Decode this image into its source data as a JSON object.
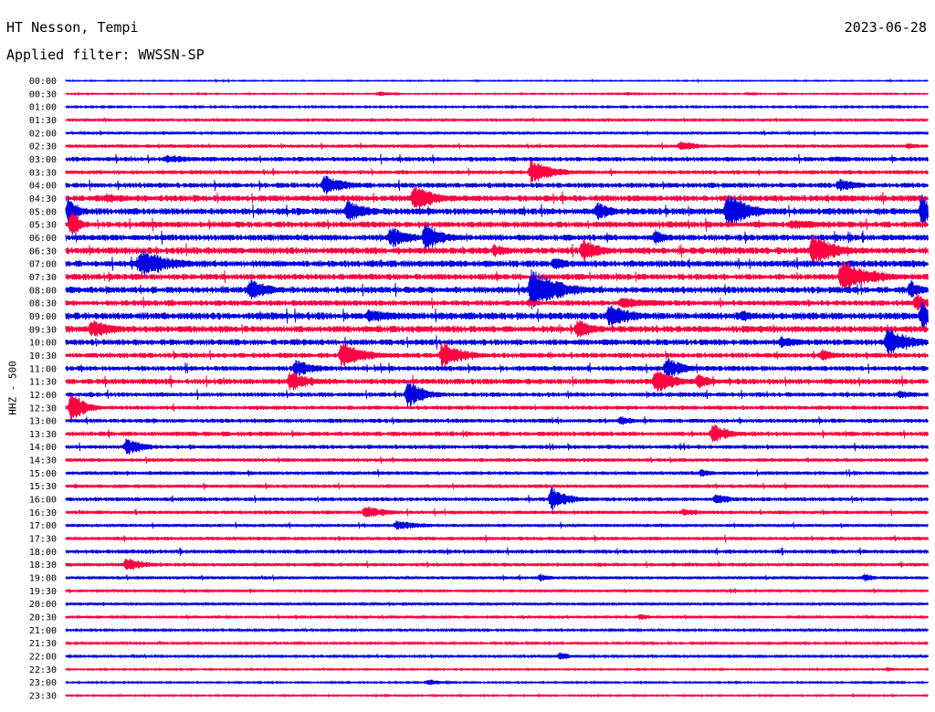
{
  "header": {
    "station": "HT Nesson, Tempi",
    "date": "2023-06-28",
    "filter_label": "Applied filter: WWSSN-SP"
  },
  "colors": {
    "trace_even": "#0000e0",
    "trace_odd": "#ff0040",
    "text": "#000000",
    "background": "#ffffff"
  },
  "chart_data": {
    "type": "line",
    "kind": "helicorder",
    "ylabel": "HHZ - 500",
    "row_labels": [
      "00:00",
      "00:30",
      "01:00",
      "01:30",
      "02:00",
      "02:30",
      "03:00",
      "03:30",
      "04:00",
      "04:30",
      "05:00",
      "05:30",
      "06:00",
      "06:30",
      "07:00",
      "07:30",
      "08:00",
      "08:30",
      "09:00",
      "09:30",
      "10:00",
      "10:30",
      "11:00",
      "11:30",
      "12:00",
      "12:30",
      "13:00",
      "13:30",
      "14:00",
      "14:30",
      "15:00",
      "15:30",
      "16:00",
      "16:30",
      "17:00",
      "17:30",
      "18:00",
      "18:30",
      "19:00",
      "19:30",
      "20:00",
      "20:30",
      "21:00",
      "21:30",
      "22:00",
      "22:30",
      "23:00",
      "23:30"
    ],
    "minutes_per_row": 30,
    "row_noise": [
      0.4,
      0.5,
      0.7,
      0.9,
      1.0,
      1.3,
      1.8,
      1.6,
      2.0,
      2.4,
      2.6,
      2.4,
      2.4,
      2.6,
      2.6,
      2.4,
      2.6,
      2.2,
      2.8,
      2.6,
      2.4,
      2.0,
      2.0,
      2.2,
      1.8,
      1.6,
      1.6,
      1.8,
      1.6,
      1.4,
      1.4,
      1.4,
      1.6,
      1.4,
      1.2,
      1.4,
      1.6,
      1.4,
      1.2,
      1.0,
      1.0,
      0.9,
      0.8,
      0.8,
      0.8,
      0.6,
      0.6,
      0.6
    ],
    "events": [
      {
        "row": 1,
        "minute": 10.9,
        "amplitude": 3,
        "duration": 1.0
      },
      {
        "row": 1,
        "minute": 19.5,
        "amplitude": 2,
        "duration": 1.0
      },
      {
        "row": 1,
        "minute": 23.7,
        "amplitude": 2,
        "duration": 0.8
      },
      {
        "row": 5,
        "minute": 21.4,
        "amplitude": 7,
        "duration": 1.2
      },
      {
        "row": 5,
        "minute": 29.3,
        "amplitude": 4,
        "duration": 1.0
      },
      {
        "row": 6,
        "minute": 3.5,
        "amplitude": 5,
        "duration": 2.5
      },
      {
        "row": 6,
        "minute": 26.7,
        "amplitude": 4,
        "duration": 1.2
      },
      {
        "row": 7,
        "minute": 16.2,
        "amplitude": 15,
        "duration": 1.5
      },
      {
        "row": 8,
        "minute": 9.0,
        "amplitude": 12,
        "duration": 1.5
      },
      {
        "row": 8,
        "minute": 26.9,
        "amplitude": 8,
        "duration": 1.5
      },
      {
        "row": 9,
        "minute": 1.4,
        "amplitude": 6,
        "duration": 2.0
      },
      {
        "row": 9,
        "minute": 12.1,
        "amplitude": 16,
        "duration": 1.5
      },
      {
        "row": 10,
        "minute": 0.1,
        "amplitude": 20,
        "duration": 0.6
      },
      {
        "row": 10,
        "minute": 9.8,
        "amplitude": 13,
        "duration": 1.5
      },
      {
        "row": 10,
        "minute": 18.5,
        "amplitude": 11,
        "duration": 1.2
      },
      {
        "row": 10,
        "minute": 23.0,
        "amplitude": 22,
        "duration": 1.5
      },
      {
        "row": 10,
        "minute": 29.8,
        "amplitude": 20,
        "duration": 0.6
      },
      {
        "row": 11,
        "minute": 0.2,
        "amplitude": 20,
        "duration": 0.5
      },
      {
        "row": 11,
        "minute": 25.2,
        "amplitude": 6,
        "duration": 3.0
      },
      {
        "row": 12,
        "minute": 11.3,
        "amplitude": 13,
        "duration": 1.5
      },
      {
        "row": 12,
        "minute": 12.5,
        "amplitude": 18,
        "duration": 1.2
      },
      {
        "row": 12,
        "minute": 20.5,
        "amplitude": 10,
        "duration": 0.8
      },
      {
        "row": 13,
        "minute": 14.9,
        "amplitude": 8,
        "duration": 1.0
      },
      {
        "row": 13,
        "minute": 18.0,
        "amplitude": 15,
        "duration": 1.2
      },
      {
        "row": 13,
        "minute": 26.0,
        "amplitude": 20,
        "duration": 1.5
      },
      {
        "row": 14,
        "minute": 2.6,
        "amplitude": 17,
        "duration": 2.0
      },
      {
        "row": 14,
        "minute": 17.0,
        "amplitude": 9,
        "duration": 1.0
      },
      {
        "row": 15,
        "minute": 27.0,
        "amplitude": 20,
        "duration": 2.0
      },
      {
        "row": 16,
        "minute": 6.4,
        "amplitude": 13,
        "duration": 1.5
      },
      {
        "row": 16,
        "minute": 16.2,
        "amplitude": 24,
        "duration": 2.0
      },
      {
        "row": 16,
        "minute": 29.4,
        "amplitude": 12,
        "duration": 0.8
      },
      {
        "row": 17,
        "minute": 19.3,
        "amplitude": 7,
        "duration": 2.5
      },
      {
        "row": 17,
        "minute": 29.6,
        "amplitude": 12,
        "duration": 0.8
      },
      {
        "row": 18,
        "minute": 10.5,
        "amplitude": 8,
        "duration": 2.5
      },
      {
        "row": 18,
        "minute": 18.9,
        "amplitude": 15,
        "duration": 1.5
      },
      {
        "row": 18,
        "minute": 23.5,
        "amplitude": 8,
        "duration": 1.0
      },
      {
        "row": 18,
        "minute": 29.8,
        "amplitude": 17,
        "duration": 1.2
      },
      {
        "row": 19,
        "minute": 0.9,
        "amplitude": 12,
        "duration": 1.5
      },
      {
        "row": 19,
        "minute": 17.8,
        "amplitude": 12,
        "duration": 1.2
      },
      {
        "row": 20,
        "minute": 24.9,
        "amplitude": 7,
        "duration": 1.5
      },
      {
        "row": 20,
        "minute": 28.6,
        "amplitude": 18,
        "duration": 1.5
      },
      {
        "row": 21,
        "minute": 9.6,
        "amplitude": 16,
        "duration": 1.5
      },
      {
        "row": 21,
        "minute": 13.1,
        "amplitude": 15,
        "duration": 1.5
      },
      {
        "row": 21,
        "minute": 26.3,
        "amplitude": 8,
        "duration": 1.0
      },
      {
        "row": 22,
        "minute": 8.0,
        "amplitude": 10,
        "duration": 1.5
      },
      {
        "row": 22,
        "minute": 20.9,
        "amplitude": 14,
        "duration": 1.2
      },
      {
        "row": 23,
        "minute": 7.8,
        "amplitude": 12,
        "duration": 1.5
      },
      {
        "row": 23,
        "minute": 20.5,
        "amplitude": 15,
        "duration": 1.5
      },
      {
        "row": 23,
        "minute": 22.0,
        "amplitude": 10,
        "duration": 1.0
      },
      {
        "row": 24,
        "minute": 11.9,
        "amplitude": 17,
        "duration": 1.2
      },
      {
        "row": 24,
        "minute": 29.0,
        "amplitude": 5,
        "duration": 1.5
      },
      {
        "row": 25,
        "minute": 0.2,
        "amplitude": 22,
        "duration": 0.8
      },
      {
        "row": 26,
        "minute": 19.3,
        "amplitude": 6,
        "duration": 1.0
      },
      {
        "row": 27,
        "minute": 22.5,
        "amplitude": 12,
        "duration": 1.2
      },
      {
        "row": 28,
        "minute": 2.1,
        "amplitude": 11,
        "duration": 1.2
      },
      {
        "row": 30,
        "minute": 22.1,
        "amplitude": 5,
        "duration": 1.0
      },
      {
        "row": 32,
        "minute": 16.9,
        "amplitude": 14,
        "duration": 1.2
      },
      {
        "row": 32,
        "minute": 22.6,
        "amplitude": 6,
        "duration": 1.5
      },
      {
        "row": 33,
        "minute": 10.4,
        "amplitude": 8,
        "duration": 1.5
      },
      {
        "row": 33,
        "minute": 21.5,
        "amplitude": 5,
        "duration": 1.5
      },
      {
        "row": 34,
        "minute": 11.5,
        "amplitude": 6,
        "duration": 2.0
      },
      {
        "row": 37,
        "minute": 2.1,
        "amplitude": 8,
        "duration": 1.5
      },
      {
        "row": 38,
        "minute": 16.5,
        "amplitude": 5,
        "duration": 0.8
      },
      {
        "row": 38,
        "minute": 27.8,
        "amplitude": 5,
        "duration": 0.8
      },
      {
        "row": 41,
        "minute": 20.0,
        "amplitude": 4,
        "duration": 0.8
      },
      {
        "row": 44,
        "minute": 17.2,
        "amplitude": 6,
        "duration": 0.6
      },
      {
        "row": 45,
        "minute": 28.6,
        "amplitude": 3,
        "duration": 0.6
      },
      {
        "row": 46,
        "minute": 12.6,
        "amplitude": 4,
        "duration": 1.0
      }
    ]
  }
}
